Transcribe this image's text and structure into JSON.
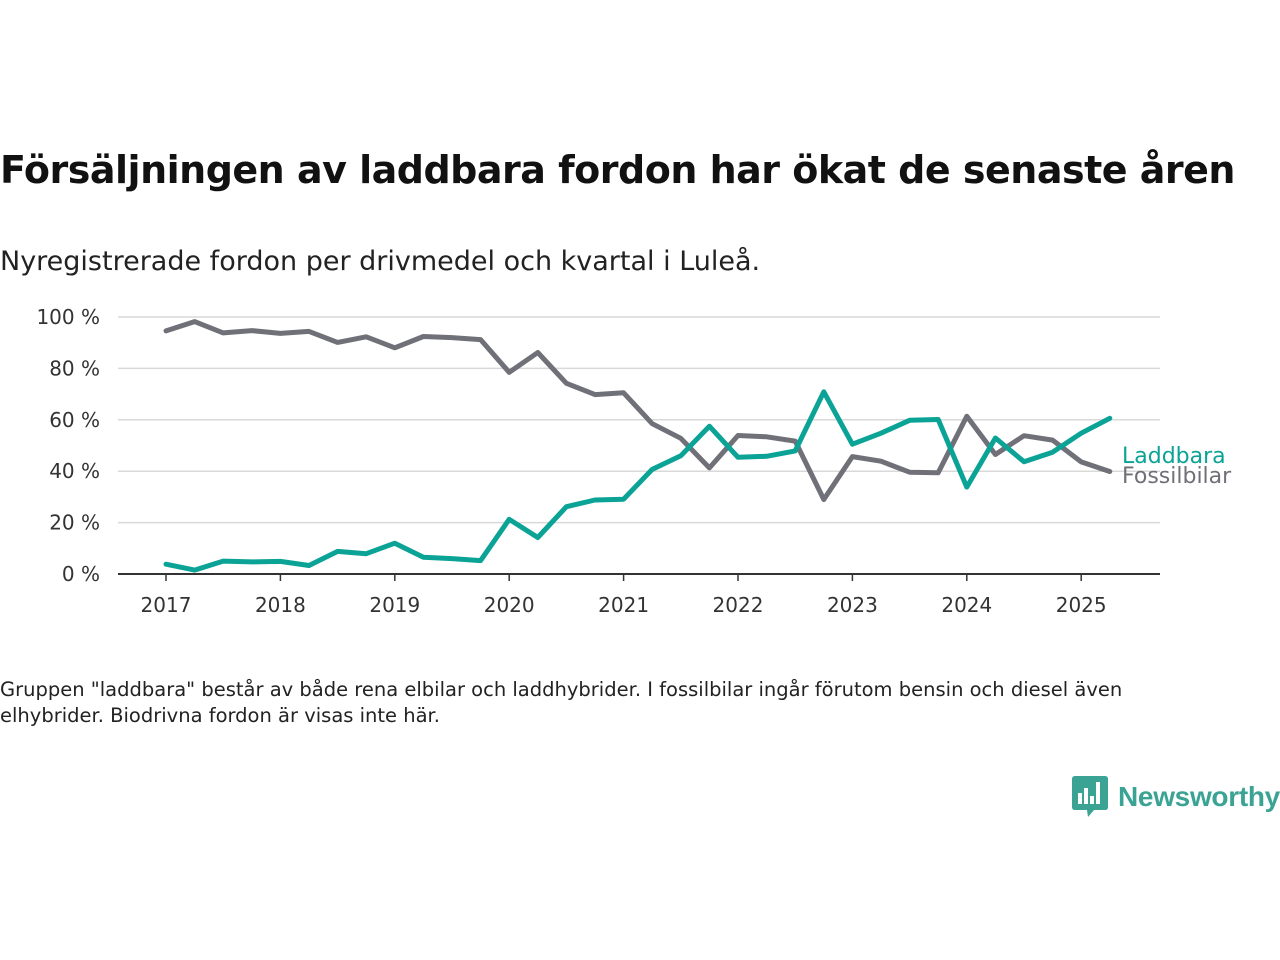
{
  "header": {
    "title": "Försäljningen av laddbara fordon har ökat de senaste åren",
    "subtitle": "Nyregistrerade fordon per drivmedel och kvartal i Luleå."
  },
  "footnote": "Gruppen \"laddbara\" består av både rena elbilar och laddhybrider. I fossilbilar ingår förutom bensin och diesel även elhybrider. Biodrivna fordon är visas inte här.",
  "brand": {
    "name": "Newsworthy",
    "icon": "newsworthy-logo-icon",
    "color": "#3aa394"
  },
  "chart_data": {
    "type": "line",
    "title": "Försäljningen av laddbara fordon har ökat de senaste åren",
    "subtitle": "Nyregistrerade fordon per drivmedel och kvartal i Luleå.",
    "xlabel": "",
    "ylabel": "",
    "ylim": [
      0,
      100
    ],
    "y_ticks": [
      0,
      20,
      40,
      60,
      80,
      100
    ],
    "y_tick_labels": [
      "0 %",
      "20 %",
      "40 %",
      "60 %",
      "80 %",
      "100 %"
    ],
    "x_tick_labels": [
      "2017",
      "2018",
      "2019",
      "2020",
      "2021",
      "2022",
      "2023",
      "2024",
      "2025"
    ],
    "x_tick_years": [
      2017,
      2018,
      2019,
      2020,
      2021,
      2022,
      2023,
      2024,
      2025
    ],
    "x": [
      "2017 Q1",
      "2017 Q2",
      "2017 Q3",
      "2017 Q4",
      "2018 Q1",
      "2018 Q2",
      "2018 Q3",
      "2018 Q4",
      "2019 Q1",
      "2019 Q2",
      "2019 Q3",
      "2019 Q4",
      "2020 Q1",
      "2020 Q2",
      "2020 Q3",
      "2020 Q4",
      "2021 Q1",
      "2021 Q2",
      "2021 Q3",
      "2021 Q4",
      "2022 Q1",
      "2022 Q2",
      "2022 Q3",
      "2022 Q4",
      "2023 Q1",
      "2023 Q2",
      "2023 Q3",
      "2023 Q4",
      "2024 Q1",
      "2024 Q2",
      "2024 Q3",
      "2024 Q4",
      "2025 Q1",
      "2025 Q2"
    ],
    "grid": true,
    "legend": "direct labels at line ends (right)",
    "series": [
      {
        "name": "Laddbara",
        "color": "#0aa396",
        "values": [
          3.8,
          1.5,
          5.0,
          4.7,
          4.9,
          3.3,
          8.8,
          7.9,
          12.0,
          6.5,
          6.0,
          5.2,
          21.3,
          14.2,
          26.2,
          28.8,
          29.1,
          40.7,
          46.0,
          57.5,
          45.4,
          45.8,
          47.9,
          70.9,
          50.5,
          54.8,
          59.8,
          60.1,
          33.8,
          52.9,
          43.7,
          47.4,
          54.8,
          60.6
        ]
      },
      {
        "name": "Fossilbilar",
        "color": "#707078",
        "values": [
          94.6,
          98.2,
          93.8,
          94.7,
          93.6,
          94.4,
          90.1,
          92.3,
          88.0,
          92.4,
          92.0,
          91.2,
          78.5,
          86.2,
          74.2,
          69.8,
          70.5,
          58.5,
          52.8,
          41.3,
          53.9,
          53.4,
          51.7,
          29.0,
          45.7,
          43.9,
          39.6,
          39.4,
          61.4,
          46.5,
          53.8,
          52.1,
          43.6,
          39.9
        ]
      }
    ]
  }
}
